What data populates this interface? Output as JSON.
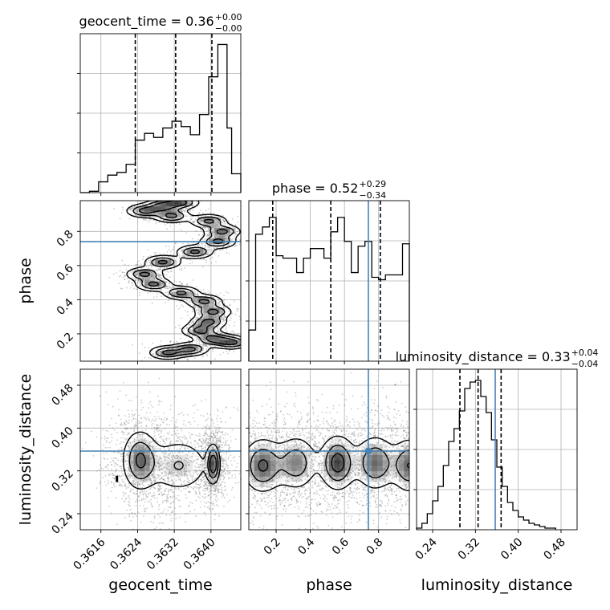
{
  "chart_data": [
    {
      "type": "histogram",
      "parameter": "geocent_time",
      "title_main": "geocent_time = 0.36",
      "title_sup": "+0.00",
      "title_sub": "−0.00",
      "xlim": [
        0.36115,
        0.36465
      ],
      "bins": [
        {
          "x0": 0.36115,
          "x1": 0.36135,
          "count": 0
        },
        {
          "x0": 0.36135,
          "x1": 0.36155,
          "count": 1
        },
        {
          "x0": 0.36155,
          "x1": 0.36175,
          "count": 8
        },
        {
          "x0": 0.36175,
          "x1": 0.36195,
          "count": 13
        },
        {
          "x0": 0.36195,
          "x1": 0.36215,
          "count": 15
        },
        {
          "x0": 0.36215,
          "x1": 0.36235,
          "count": 21
        },
        {
          "x0": 0.36235,
          "x1": 0.36255,
          "count": 39
        },
        {
          "x0": 0.36255,
          "x1": 0.36275,
          "count": 44
        },
        {
          "x0": 0.36275,
          "x1": 0.36295,
          "count": 41
        },
        {
          "x0": 0.36295,
          "x1": 0.36315,
          "count": 48
        },
        {
          "x0": 0.36315,
          "x1": 0.36335,
          "count": 53
        },
        {
          "x0": 0.36335,
          "x1": 0.36355,
          "count": 49
        },
        {
          "x0": 0.36355,
          "x1": 0.36375,
          "count": 43
        },
        {
          "x0": 0.36375,
          "x1": 0.36395,
          "count": 58
        },
        {
          "x0": 0.36395,
          "x1": 0.36415,
          "count": 86
        },
        {
          "x0": 0.36415,
          "x1": 0.36435,
          "count": 110
        },
        {
          "x0": 0.36435,
          "x1": 0.36445,
          "count": 48
        },
        {
          "x0": 0.36445,
          "x1": 0.36465,
          "count": 14
        }
      ],
      "quantiles": [
        0.36235,
        0.36323,
        0.36402
      ],
      "truth": null,
      "ylim": [
        0,
        118
      ]
    },
    {
      "type": "histogram",
      "parameter": "phase",
      "title_main": "phase = 0.52",
      "title_sup": "+0.29",
      "title_sub": "−0.34",
      "xlim": [
        0.04,
        0.98
      ],
      "bins": [
        {
          "x0": 0.04,
          "x1": 0.08,
          "count": 13
        },
        {
          "x0": 0.08,
          "x1": 0.12,
          "count": 53
        },
        {
          "x0": 0.12,
          "x1": 0.16,
          "count": 56
        },
        {
          "x0": 0.16,
          "x1": 0.2,
          "count": 60
        },
        {
          "x0": 0.2,
          "x1": 0.24,
          "count": 44
        },
        {
          "x0": 0.24,
          "x1": 0.28,
          "count": 43
        },
        {
          "x0": 0.28,
          "x1": 0.32,
          "count": 43
        },
        {
          "x0": 0.32,
          "x1": 0.36,
          "count": 37
        },
        {
          "x0": 0.36,
          "x1": 0.4,
          "count": 43
        },
        {
          "x0": 0.4,
          "x1": 0.44,
          "count": 47
        },
        {
          "x0": 0.44,
          "x1": 0.48,
          "count": 47
        },
        {
          "x0": 0.48,
          "x1": 0.52,
          "count": 43
        },
        {
          "x0": 0.52,
          "x1": 0.56,
          "count": 54
        },
        {
          "x0": 0.56,
          "x1": 0.6,
          "count": 60
        },
        {
          "x0": 0.6,
          "x1": 0.64,
          "count": 50
        },
        {
          "x0": 0.64,
          "x1": 0.68,
          "count": 37
        },
        {
          "x0": 0.68,
          "x1": 0.72,
          "count": 48
        },
        {
          "x0": 0.72,
          "x1": 0.76,
          "count": 50
        },
        {
          "x0": 0.76,
          "x1": 0.8,
          "count": 35
        },
        {
          "x0": 0.8,
          "x1": 0.84,
          "count": 34
        },
        {
          "x0": 0.84,
          "x1": 0.88,
          "count": 36
        },
        {
          "x0": 0.88,
          "x1": 0.94,
          "count": 36
        },
        {
          "x0": 0.94,
          "x1": 0.98,
          "count": 49
        }
      ],
      "quantiles": [
        0.18,
        0.52,
        0.81
      ],
      "truth": 0.74,
      "ylim": [
        0,
        67
      ]
    },
    {
      "type": "histogram",
      "parameter": "luminosity_distance",
      "title_main": "luminosity_distance = 0.33",
      "title_sup": "+0.04",
      "title_sub": "−0.04",
      "xlim": [
        0.21,
        0.51
      ],
      "bins": [
        {
          "x0": 0.21,
          "x1": 0.22,
          "count": 1
        },
        {
          "x0": 0.22,
          "x1": 0.23,
          "count": 4
        },
        {
          "x0": 0.23,
          "x1": 0.24,
          "count": 10
        },
        {
          "x0": 0.24,
          "x1": 0.25,
          "count": 18
        },
        {
          "x0": 0.25,
          "x1": 0.26,
          "count": 27
        },
        {
          "x0": 0.26,
          "x1": 0.27,
          "count": 40
        },
        {
          "x0": 0.27,
          "x1": 0.28,
          "count": 55
        },
        {
          "x0": 0.28,
          "x1": 0.29,
          "count": 63
        },
        {
          "x0": 0.29,
          "x1": 0.3,
          "count": 74
        },
        {
          "x0": 0.3,
          "x1": 0.31,
          "count": 88
        },
        {
          "x0": 0.31,
          "x1": 0.32,
          "count": 92
        },
        {
          "x0": 0.32,
          "x1": 0.33,
          "count": 93
        },
        {
          "x0": 0.33,
          "x1": 0.34,
          "count": 83
        },
        {
          "x0": 0.34,
          "x1": 0.35,
          "count": 73
        },
        {
          "x0": 0.35,
          "x1": 0.36,
          "count": 56
        },
        {
          "x0": 0.36,
          "x1": 0.37,
          "count": 39
        },
        {
          "x0": 0.37,
          "x1": 0.38,
          "count": 27
        },
        {
          "x0": 0.38,
          "x1": 0.39,
          "count": 17
        },
        {
          "x0": 0.39,
          "x1": 0.4,
          "count": 12
        },
        {
          "x0": 0.4,
          "x1": 0.41,
          "count": 8
        },
        {
          "x0": 0.41,
          "x1": 0.42,
          "count": 6
        },
        {
          "x0": 0.42,
          "x1": 0.43,
          "count": 4
        },
        {
          "x0": 0.43,
          "x1": 0.44,
          "count": 3
        },
        {
          "x0": 0.44,
          "x1": 0.45,
          "count": 2
        },
        {
          "x0": 0.45,
          "x1": 0.46,
          "count": 1
        },
        {
          "x0": 0.46,
          "x1": 0.47,
          "count": 1
        }
      ],
      "quantiles": [
        0.291,
        0.325,
        0.368
      ],
      "truth": 0.357,
      "ylim": [
        0,
        100
      ]
    },
    {
      "type": "scatter-contour",
      "x_parameter": "geocent_time",
      "y_parameter": "phase",
      "xlim": [
        0.36115,
        0.36465
      ],
      "ylim": [
        0.04,
        0.98
      ],
      "truth": {
        "y": 0.74
      },
      "density_ridge": [
        {
          "x": 0.36335,
          "y": 0.97
        },
        {
          "x": 0.36295,
          "y": 0.95
        },
        {
          "x": 0.36255,
          "y": 0.92
        },
        {
          "x": 0.36315,
          "y": 0.89
        },
        {
          "x": 0.36395,
          "y": 0.86
        },
        {
          "x": 0.36425,
          "y": 0.8
        },
        {
          "x": 0.36415,
          "y": 0.74
        },
        {
          "x": 0.36365,
          "y": 0.68
        },
        {
          "x": 0.36295,
          "y": 0.62
        },
        {
          "x": 0.36255,
          "y": 0.55
        },
        {
          "x": 0.36275,
          "y": 0.49
        },
        {
          "x": 0.36335,
          "y": 0.44
        },
        {
          "x": 0.36385,
          "y": 0.39
        },
        {
          "x": 0.36405,
          "y": 0.33
        },
        {
          "x": 0.36395,
          "y": 0.27
        },
        {
          "x": 0.36375,
          "y": 0.22
        },
        {
          "x": 0.36405,
          "y": 0.17
        },
        {
          "x": 0.36445,
          "y": 0.15
        },
        {
          "x": 0.36355,
          "y": 0.11
        },
        {
          "x": 0.36305,
          "y": 0.09
        }
      ]
    },
    {
      "type": "scatter-contour",
      "x_parameter": "geocent_time",
      "y_parameter": "luminosity_distance",
      "xlim": [
        0.36115,
        0.36465
      ],
      "ylim": [
        0.21,
        0.51
      ],
      "truth": {
        "y": 0.357
      },
      "density_modes": [
        {
          "x": 0.36245,
          "y": 0.34,
          "sx": 0.00022,
          "sy": 0.032,
          "w": 0.8
        },
        {
          "x": 0.36405,
          "y": 0.333,
          "sx": 8e-05,
          "sy": 0.02,
          "w": 1.0
        },
        {
          "x": 0.3633,
          "y": 0.33,
          "sx": 0.0004,
          "sy": 0.03,
          "w": 0.5
        }
      ],
      "isolated_point": {
        "x": 0.36195,
        "y": 0.305
      }
    },
    {
      "type": "scatter-contour",
      "x_parameter": "phase",
      "y_parameter": "luminosity_distance",
      "xlim": [
        0.04,
        0.98
      ],
      "ylim": [
        0.21,
        0.51
      ],
      "truth": {
        "x": 0.74,
        "y": 0.357
      },
      "density_modes": [
        {
          "x": 0.12,
          "y": 0.33,
          "sx": 0.07,
          "sy": 0.03,
          "w": 0.9
        },
        {
          "x": 0.32,
          "y": 0.335,
          "sx": 0.07,
          "sy": 0.03,
          "w": 0.75
        },
        {
          "x": 0.56,
          "y": 0.335,
          "sx": 0.06,
          "sy": 0.03,
          "w": 1.0
        },
        {
          "x": 0.78,
          "y": 0.335,
          "sx": 0.07,
          "sy": 0.03,
          "w": 0.85
        },
        {
          "x": 0.98,
          "y": 0.33,
          "sx": 0.06,
          "sy": 0.03,
          "w": 0.85
        }
      ]
    }
  ],
  "axes": {
    "geocent_time": {
      "label": "geocent_time",
      "ticks": [
        {
          "value": 0.3616,
          "label": "0.3616"
        },
        {
          "value": 0.3624,
          "label": "0.3624"
        },
        {
          "value": 0.3632,
          "label": "0.3632"
        },
        {
          "value": 0.364,
          "label": "0.3640"
        }
      ]
    },
    "phase": {
      "label": "phase",
      "ticks": [
        {
          "value": 0.2,
          "label": "0.2"
        },
        {
          "value": 0.4,
          "label": "0.4"
        },
        {
          "value": 0.6,
          "label": "0.6"
        },
        {
          "value": 0.8,
          "label": "0.8"
        }
      ]
    },
    "luminosity_distance": {
      "label": "luminosity_distance",
      "ticks": [
        {
          "value": 0.24,
          "label": "0.24"
        },
        {
          "value": 0.32,
          "label": "0.32"
        },
        {
          "value": 0.4,
          "label": "0.40"
        },
        {
          "value": 0.48,
          "label": "0.48"
        }
      ]
    }
  },
  "style": {
    "hist_color": "#000000",
    "quantile_color": "#000000",
    "truth_color": "#4682b4",
    "grid_color": "#b0b0b0",
    "contour_color": "#000000",
    "scatter_color": "#6e6e6e"
  }
}
